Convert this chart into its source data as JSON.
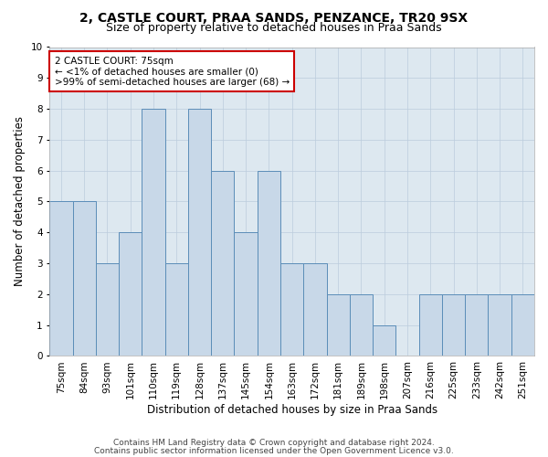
{
  "title1": "2, CASTLE COURT, PRAA SANDS, PENZANCE, TR20 9SX",
  "title2": "Size of property relative to detached houses in Praa Sands",
  "xlabel": "Distribution of detached houses by size in Praa Sands",
  "ylabel": "Number of detached properties",
  "categories": [
    "75sqm",
    "84sqm",
    "93sqm",
    "101sqm",
    "110sqm",
    "119sqm",
    "128sqm",
    "137sqm",
    "145sqm",
    "154sqm",
    "163sqm",
    "172sqm",
    "181sqm",
    "189sqm",
    "198sqm",
    "207sqm",
    "216sqm",
    "225sqm",
    "233sqm",
    "242sqm",
    "251sqm"
  ],
  "values": [
    5,
    5,
    3,
    4,
    8,
    3,
    8,
    6,
    4,
    6,
    3,
    3,
    2,
    2,
    1,
    0,
    2,
    2,
    2,
    2,
    2
  ],
  "bar_color": "#c8d8e8",
  "bar_edge_color": "#5b8db8",
  "highlight_box_color": "#cc0000",
  "annotation_line1": "2 CASTLE COURT: 75sqm",
  "annotation_line2": "← <1% of detached houses are smaller (0)",
  "annotation_line3": ">99% of semi-detached houses are larger (68) →",
  "ylim": [
    0,
    10
  ],
  "yticks": [
    0,
    1,
    2,
    3,
    4,
    5,
    6,
    7,
    8,
    9,
    10
  ],
  "grid_color": "#bbccdd",
  "background_color": "#dde8f0",
  "footer1": "Contains HM Land Registry data © Crown copyright and database right 2024.",
  "footer2": "Contains public sector information licensed under the Open Government Licence v3.0.",
  "title1_fontsize": 10,
  "title2_fontsize": 9,
  "xlabel_fontsize": 8.5,
  "ylabel_fontsize": 8.5,
  "tick_fontsize": 7.5,
  "annotation_fontsize": 7.5,
  "footer_fontsize": 6.5
}
